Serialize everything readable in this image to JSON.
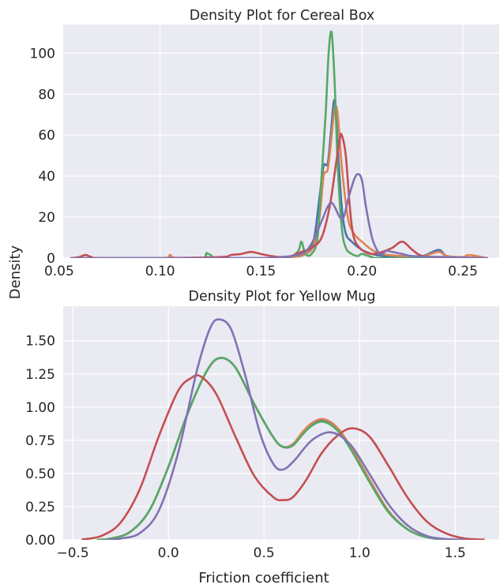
{
  "figure": {
    "shared_ylabel": "Density"
  },
  "chart_data": [
    {
      "type": "line",
      "title": "Density Plot for Cereal Box",
      "xlabel": "",
      "ylabel": "Density",
      "xlim": [
        0.052,
        0.268
      ],
      "ylim": [
        0,
        114
      ],
      "xticks": [
        0.05,
        0.1,
        0.15,
        0.2,
        0.25
      ],
      "xtick_labels": [
        "0.05",
        "0.10",
        "0.15",
        "0.20",
        "0.25"
      ],
      "yticks": [
        0,
        20,
        40,
        60,
        80,
        100
      ],
      "ytick_labels": [
        "0",
        "20",
        "40",
        "60",
        "80",
        "100"
      ],
      "grid": true,
      "series": [
        {
          "color": "#4c72b0",
          "x": [
            0.056,
            0.1,
            0.15,
            0.165,
            0.172,
            0.176,
            0.179,
            0.181,
            0.183,
            0.1845,
            0.186,
            0.187,
            0.188,
            0.19,
            0.192,
            0.195,
            0.2,
            0.205,
            0.21,
            0.22,
            0.23,
            0.238,
            0.242,
            0.25,
            0.262
          ],
          "y": [
            0,
            0,
            0,
            0.5,
            2,
            8,
            30,
            45,
            46,
            60,
            76,
            74,
            55,
            25,
            12,
            8,
            4,
            2,
            1,
            0.5,
            1,
            4,
            1,
            0.3,
            0
          ]
        },
        {
          "color": "#dd8452",
          "x": [
            0.056,
            0.1,
            0.105,
            0.11,
            0.15,
            0.165,
            0.172,
            0.176,
            0.179,
            0.181,
            0.183,
            0.1845,
            0.1865,
            0.188,
            0.19,
            0.193,
            0.196,
            0.2,
            0.205,
            0.21,
            0.22,
            0.23,
            0.238,
            0.242,
            0.25,
            0.253,
            0.262
          ],
          "y": [
            0,
            0,
            1.5,
            0,
            0,
            0.5,
            2,
            6,
            20,
            40,
            43,
            55,
            73,
            70,
            45,
            20,
            12,
            8,
            4,
            2,
            1,
            1,
            3,
            1,
            0.5,
            1.5,
            0
          ]
        },
        {
          "color": "#55a868",
          "x": [
            0.056,
            0.12,
            0.123,
            0.126,
            0.16,
            0.168,
            0.17,
            0.172,
            0.175,
            0.178,
            0.18,
            0.182,
            0.1835,
            0.185,
            0.1865,
            0.188,
            0.19,
            0.192,
            0.195,
            0.198,
            0.2,
            0.205,
            0.21,
            0.262
          ],
          "y": [
            0,
            0,
            2.5,
            0,
            0,
            3,
            8,
            2,
            2,
            10,
            40,
            70,
            100,
            110,
            85,
            45,
            15,
            5,
            2,
            1,
            2,
            0.5,
            0,
            0
          ]
        },
        {
          "color": "#c44e52",
          "x": [
            0.056,
            0.06,
            0.063,
            0.066,
            0.07,
            0.1,
            0.13,
            0.135,
            0.14,
            0.145,
            0.15,
            0.155,
            0.16,
            0.165,
            0.17,
            0.175,
            0.18,
            0.184,
            0.187,
            0.189,
            0.19,
            0.192,
            0.194,
            0.196,
            0.2,
            0.205,
            0.21,
            0.215,
            0.22,
            0.225,
            0.23,
            0.24,
            0.262
          ],
          "y": [
            0,
            0.5,
            1.5,
            0.5,
            0,
            0,
            0.5,
            1.5,
            2,
            3,
            2,
            1,
            0.5,
            1,
            3,
            5,
            10,
            25,
            45,
            58,
            60,
            50,
            25,
            10,
            4,
            2,
            3,
            5,
            8,
            4,
            1,
            0.5,
            0
          ]
        },
        {
          "color": "#8172b3",
          "x": [
            0.056,
            0.1,
            0.15,
            0.16,
            0.17,
            0.175,
            0.18,
            0.183,
            0.185,
            0.187,
            0.189,
            0.191,
            0.193,
            0.196,
            0.198,
            0.2,
            0.202,
            0.205,
            0.208,
            0.21,
            0.212,
            0.215,
            0.22,
            0.225,
            0.24,
            0.262
          ],
          "y": [
            0,
            0,
            0,
            0.5,
            2,
            7,
            18,
            25,
            27,
            24,
            20,
            20,
            28,
            38,
            41,
            38,
            25,
            10,
            3,
            2,
            3.5,
            3,
            2,
            1,
            0.5,
            0
          ]
        }
      ]
    },
    {
      "type": "line",
      "title": "Density Plot for Yellow Mug",
      "xlabel": "Friction coefficient",
      "ylabel": "Density",
      "xlim": [
        -0.55,
        1.73
      ],
      "ylim": [
        0,
        1.76
      ],
      "xticks": [
        -0.5,
        0.0,
        0.5,
        1.0,
        1.5
      ],
      "xtick_labels": [
        "−0.5",
        "0.0",
        "0.5",
        "1.0",
        "1.5"
      ],
      "yticks": [
        0,
        0.25,
        0.5,
        0.75,
        1.0,
        1.25,
        1.5
      ],
      "ytick_labels": [
        "0.00",
        "0.25",
        "0.50",
        "0.75",
        "1.00",
        "1.25",
        "1.50"
      ],
      "grid": true,
      "series": [
        {
          "color": "#4c72b0",
          "x": [
            -0.37,
            -0.3,
            -0.2,
            -0.1,
            0.0,
            0.1,
            0.2,
            0.27,
            0.35,
            0.45,
            0.55,
            0.6,
            0.65,
            0.7,
            0.75,
            0.81,
            0.88,
            0.95,
            1.05,
            1.15,
            1.25,
            1.35,
            1.45,
            1.55
          ],
          "y": [
            0,
            0.01,
            0.06,
            0.22,
            0.55,
            0.95,
            1.27,
            1.37,
            1.3,
            1.02,
            0.77,
            0.7,
            0.72,
            0.8,
            0.87,
            0.9,
            0.84,
            0.7,
            0.45,
            0.22,
            0.08,
            0.02,
            0.005,
            0
          ]
        },
        {
          "color": "#dd8452",
          "x": [
            -0.37,
            -0.3,
            -0.2,
            -0.1,
            0.0,
            0.1,
            0.2,
            0.27,
            0.35,
            0.45,
            0.55,
            0.6,
            0.65,
            0.7,
            0.75,
            0.81,
            0.88,
            0.95,
            1.05,
            1.15,
            1.25,
            1.35,
            1.45,
            1.55
          ],
          "y": [
            0,
            0.01,
            0.06,
            0.22,
            0.55,
            0.95,
            1.27,
            1.37,
            1.3,
            1.02,
            0.77,
            0.7,
            0.72,
            0.81,
            0.88,
            0.91,
            0.85,
            0.71,
            0.46,
            0.22,
            0.08,
            0.02,
            0.005,
            0
          ]
        },
        {
          "color": "#55a868",
          "x": [
            -0.37,
            -0.3,
            -0.2,
            -0.1,
            0.0,
            0.1,
            0.2,
            0.27,
            0.35,
            0.45,
            0.55,
            0.6,
            0.65,
            0.7,
            0.75,
            0.81,
            0.88,
            0.95,
            1.05,
            1.15,
            1.25,
            1.35,
            1.45,
            1.55
          ],
          "y": [
            0,
            0.01,
            0.06,
            0.22,
            0.55,
            0.95,
            1.27,
            1.37,
            1.3,
            1.02,
            0.77,
            0.7,
            0.71,
            0.79,
            0.86,
            0.89,
            0.83,
            0.69,
            0.44,
            0.21,
            0.08,
            0.02,
            0.005,
            0
          ]
        },
        {
          "color": "#c44e52",
          "x": [
            -0.45,
            -0.35,
            -0.25,
            -0.15,
            -0.05,
            0.05,
            0.12,
            0.17,
            0.25,
            0.35,
            0.45,
            0.55,
            0.6,
            0.65,
            0.72,
            0.8,
            0.88,
            0.96,
            1.05,
            1.15,
            1.25,
            1.35,
            1.45,
            1.55,
            1.65
          ],
          "y": [
            0.003,
            0.03,
            0.13,
            0.38,
            0.78,
            1.12,
            1.22,
            1.23,
            1.1,
            0.78,
            0.48,
            0.32,
            0.3,
            0.32,
            0.45,
            0.65,
            0.78,
            0.84,
            0.78,
            0.56,
            0.32,
            0.14,
            0.05,
            0.01,
            0.002
          ]
        },
        {
          "color": "#8172b3",
          "x": [
            -0.32,
            -0.25,
            -0.15,
            -0.05,
            0.05,
            0.15,
            0.22,
            0.27,
            0.33,
            0.4,
            0.48,
            0.55,
            0.6,
            0.66,
            0.75,
            0.85,
            0.95,
            1.05,
            1.15,
            1.25,
            1.35,
            1.45,
            1.55
          ],
          "y": [
            0,
            0.01,
            0.05,
            0.22,
            0.65,
            1.28,
            1.6,
            1.66,
            1.58,
            1.25,
            0.8,
            0.57,
            0.53,
            0.6,
            0.75,
            0.81,
            0.72,
            0.5,
            0.27,
            0.11,
            0.03,
            0.006,
            0
          ]
        }
      ]
    }
  ]
}
